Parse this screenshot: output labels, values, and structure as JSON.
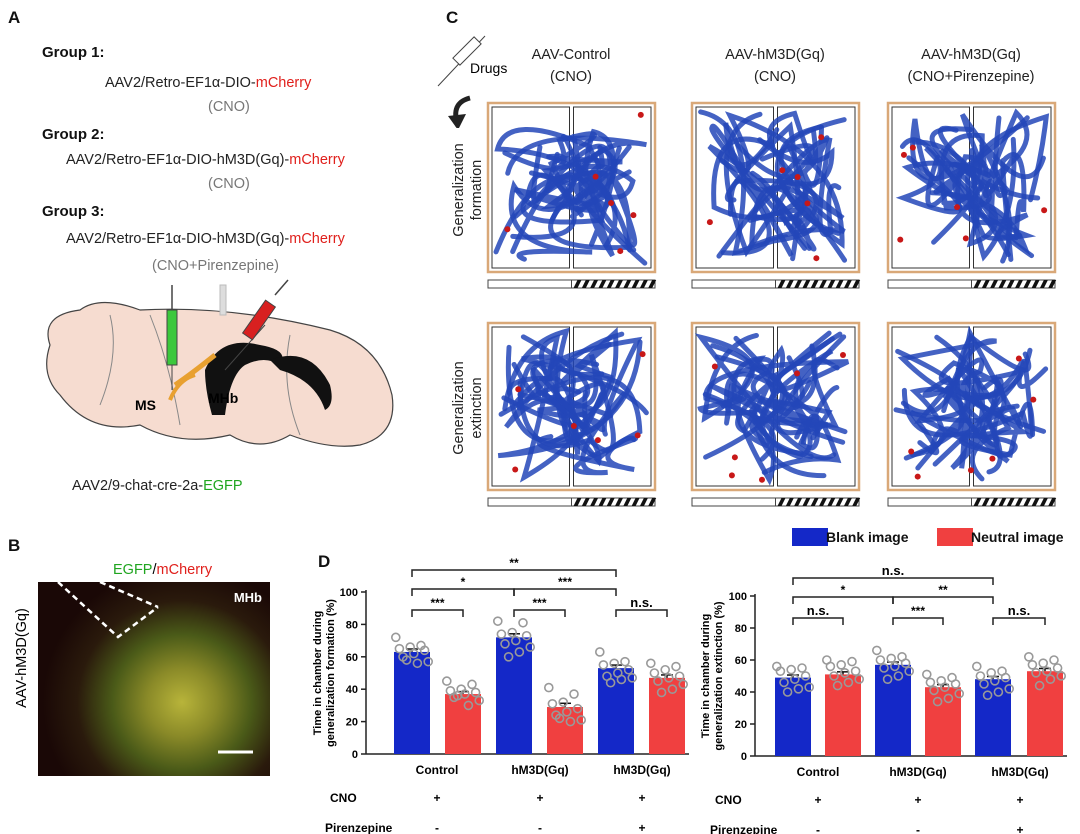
{
  "panel_a": {
    "label": "A",
    "groups": [
      {
        "title": "Group 1:",
        "construct_prefix": "AAV2/Retro-EF1α-DIO-",
        "construct_red": "mCherry",
        "treatment": "(CNO)"
      },
      {
        "title": "Group 2:",
        "construct_prefix": "AAV2/Retro-EF1α-DIO-hM3D(Gq)-",
        "construct_red": "mCherry",
        "treatment": "(CNO)"
      },
      {
        "title": "Group 3:",
        "construct_prefix": "AAV2/Retro-EF1α-DIO-hM3D(Gq)-",
        "construct_red": "mCherry",
        "treatment": "(CNO+Pirenzepine)"
      }
    ],
    "brain_labels": {
      "ms": "MS",
      "mhb": "MHb"
    },
    "bottom_prefix": "AAV2/9-chat-cre-2a-",
    "bottom_green": "EGFP"
  },
  "panel_b": {
    "label": "B",
    "side_label": "AAV-hM3D(Gq)",
    "stain_green": "EGFP",
    "stain_sep": "/",
    "stain_red": "mCherry",
    "region": "MHb"
  },
  "panel_c": {
    "label": "C",
    "drugs_label": "Drugs",
    "columns": [
      {
        "line1": "AAV-Control",
        "line2": "(CNO)"
      },
      {
        "line1": "AAV-hM3D(Gq)",
        "line2": "(CNO)"
      },
      {
        "line1": "AAV-hM3D(Gq)",
        "line2": "(CNO+Pirenzepine)"
      }
    ],
    "rows": [
      {
        "line1": "Generalization",
        "line2": "formation"
      },
      {
        "line1": "Generalization",
        "line2": "extinction"
      }
    ]
  },
  "panel_d": {
    "label": "D",
    "legend": [
      {
        "name": "Blank image",
        "color": "#1428c8"
      },
      {
        "name": "Neutral image",
        "color": "#f04040"
      }
    ],
    "row_labels": {
      "cno": "CNO",
      "pirenzepine": "Pirenzepine"
    },
    "cno_signs": [
      "+",
      "+",
      "+"
    ],
    "pirenzepine_signs": [
      "-",
      "-",
      "+"
    ]
  },
  "chart_data": [
    {
      "type": "bar",
      "ylabel": "Time in chamber during generalization formation (%)",
      "ylim": [
        0,
        100
      ],
      "yticks": [
        "0",
        "20",
        "40",
        "60",
        "80",
        "100"
      ],
      "categories": [
        "Control",
        "hM3D(Gq)",
        "hM3D(Gq)"
      ],
      "series": [
        {
          "name": "Blank image",
          "color": "#1428c8",
          "values": [
            63,
            72,
            53
          ],
          "sem": [
            1.8,
            2.2,
            1.9
          ],
          "points": [
            [
              72,
              67,
              66,
              65,
              64,
              62,
              60,
              57,
              56,
              58
            ],
            [
              82,
              81,
              75,
              74,
              73,
              70,
              68,
              66,
              63,
              60
            ],
            [
              63,
              57,
              56,
              55,
              52,
              50,
              48,
              47,
              46,
              44
            ]
          ]
        },
        {
          "name": "Neutral image",
          "color": "#f04040",
          "values": [
            37,
            29,
            47
          ],
          "sem": [
            1.5,
            2.3,
            1.8
          ],
          "points": [
            [
              45,
              43,
              40,
              39,
              38,
              37,
              35,
              33,
              30,
              36
            ],
            [
              41,
              37,
              32,
              31,
              28,
              26,
              24,
              21,
              20,
              22
            ],
            [
              56,
              54,
              52,
              50,
              48,
              47,
              45,
              43,
              40,
              38
            ]
          ]
        }
      ],
      "significance": [
        {
          "from": 0,
          "to": 1,
          "level": 0,
          "label": "***"
        },
        {
          "from": 2,
          "to": 3,
          "level": 0,
          "label": "***"
        },
        {
          "from": 4,
          "to": 5,
          "level": 0,
          "label": "n.s."
        },
        {
          "from": 0,
          "to": 2,
          "level": 1,
          "label": "*"
        },
        {
          "from": 2,
          "to": 4,
          "level": 1,
          "label": "***"
        },
        {
          "from": 0,
          "to": 4,
          "level": 2,
          "label": "**"
        }
      ]
    },
    {
      "type": "bar",
      "ylabel": "Time in chamber during generalization extinction (%)",
      "ylim": [
        0,
        100
      ],
      "yticks": [
        "0",
        "20",
        "40",
        "60",
        "80",
        "100"
      ],
      "categories": [
        "Control",
        "hM3D(Gq)",
        "hM3D(Gq)"
      ],
      "series": [
        {
          "name": "Blank image",
          "color": "#1428c8",
          "values": [
            49,
            57,
            48
          ],
          "sem": [
            1.6,
            1.7,
            1.7
          ],
          "points": [
            [
              56,
              55,
              54,
              53,
              50,
              48,
              46,
              43,
              42,
              40
            ],
            [
              66,
              62,
              61,
              60,
              58,
              56,
              55,
              53,
              50,
              48
            ],
            [
              56,
              53,
              52,
              50,
              49,
              47,
              45,
              42,
              40,
              38
            ]
          ]
        },
        {
          "name": "Neutral image",
          "color": "#f04040",
          "values": [
            51,
            43,
            53
          ],
          "sem": [
            1.6,
            1.6,
            1.7
          ],
          "points": [
            [
              60,
              59,
              57,
              56,
              53,
              52,
              50,
              48,
              46,
              44
            ],
            [
              51,
              49,
              47,
              46,
              45,
              43,
              41,
              39,
              36,
              34
            ],
            [
              62,
              60,
              58,
              57,
              55,
              53,
              52,
              50,
              48,
              44
            ]
          ]
        }
      ],
      "significance": [
        {
          "from": 0,
          "to": 1,
          "level": 0,
          "label": "n.s."
        },
        {
          "from": 2,
          "to": 3,
          "level": 0,
          "label": "***"
        },
        {
          "from": 4,
          "to": 5,
          "level": 0,
          "label": "n.s."
        },
        {
          "from": 0,
          "to": 2,
          "level": 1,
          "label": "*"
        },
        {
          "from": 2,
          "to": 4,
          "level": 1,
          "label": "**"
        },
        {
          "from": 0,
          "to": 4,
          "level": 2,
          "label": "n.s."
        }
      ]
    }
  ]
}
